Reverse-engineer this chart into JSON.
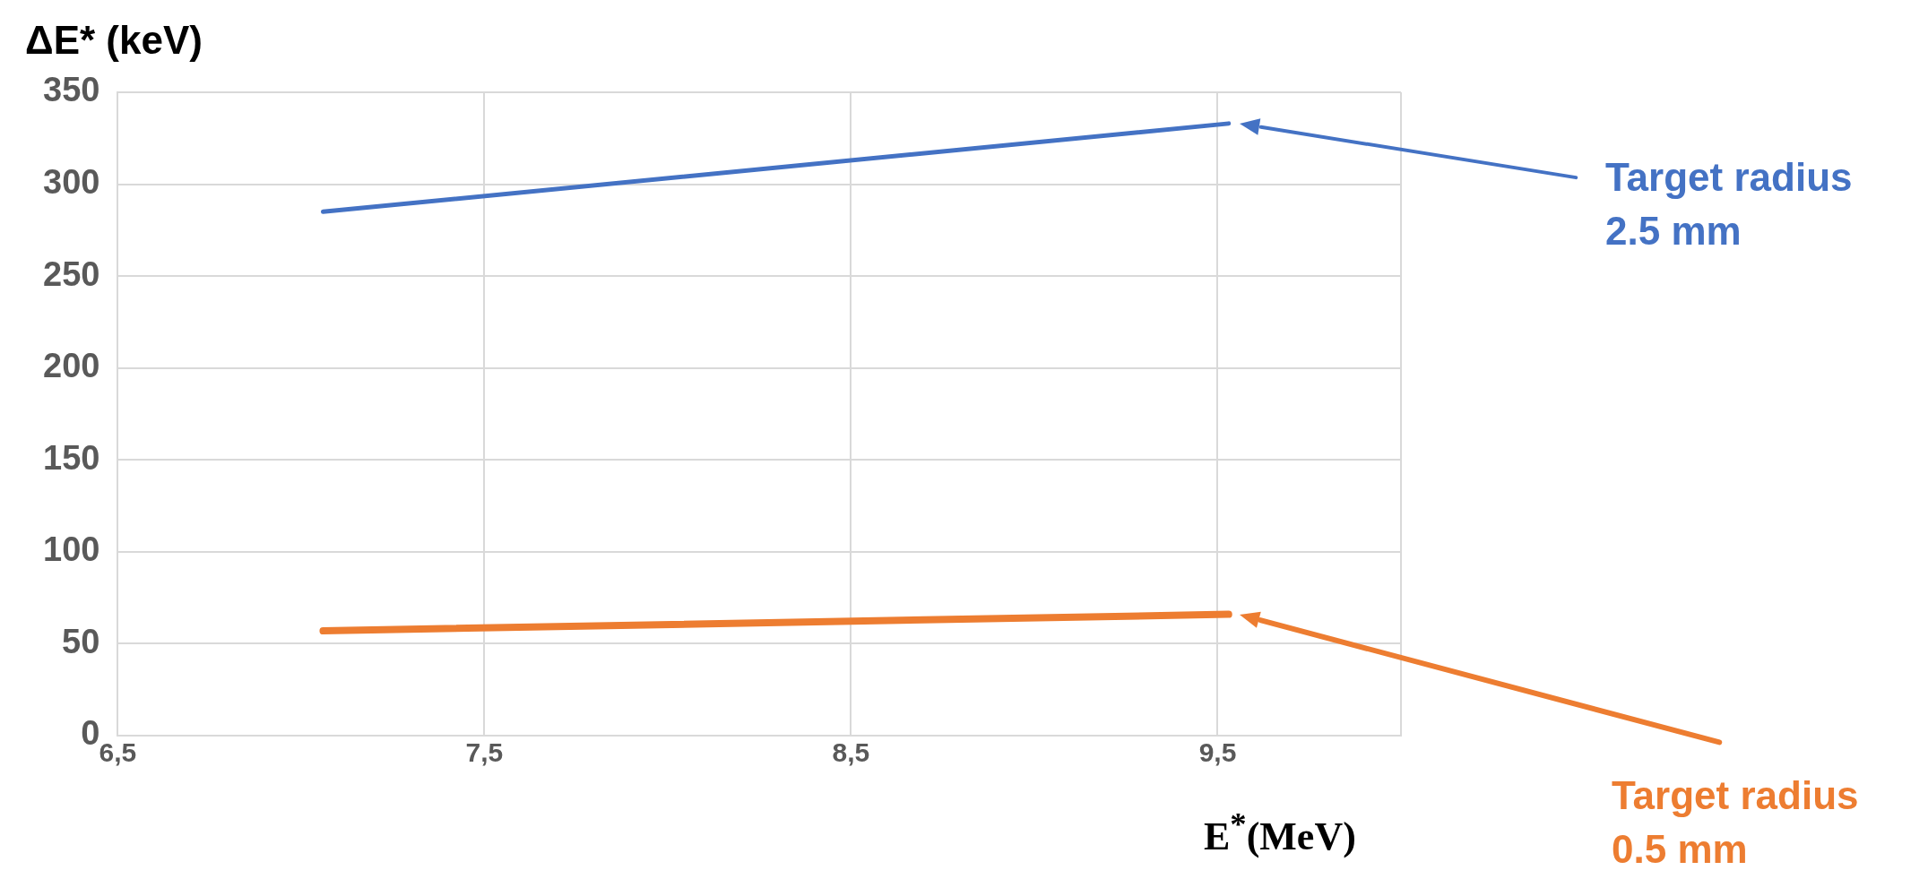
{
  "chart_data": {
    "type": "line",
    "xlabel": "E$^{*}$(MeV)",
    "ylabel": "ΔE* (keV)",
    "xlim": [
      6.5,
      10
    ],
    "xticks": [
      {
        "value": 6.5,
        "label": "6,5"
      },
      {
        "value": 7.5,
        "label": "7,5"
      },
      {
        "value": 8.5,
        "label": "8,5"
      },
      {
        "value": 9.5,
        "label": "9,5"
      }
    ],
    "ylim": [
      0,
      350
    ],
    "yticks": [
      0,
      50,
      100,
      150,
      200,
      250,
      300,
      350
    ],
    "grid": true,
    "marker": "none",
    "line_style": "solid",
    "x": [
      7.06,
      9.53
    ],
    "series": [
      {
        "color": "#4472c4",
        "values": [
          285,
          333
        ]
      },
      {
        "color": "#ed7d31",
        "values": [
          57,
          66
        ]
      }
    ],
    "annotations": [
      "Target radius 2.5 mm",
      "Target radius 0.5 mm"
    ]
  }
}
